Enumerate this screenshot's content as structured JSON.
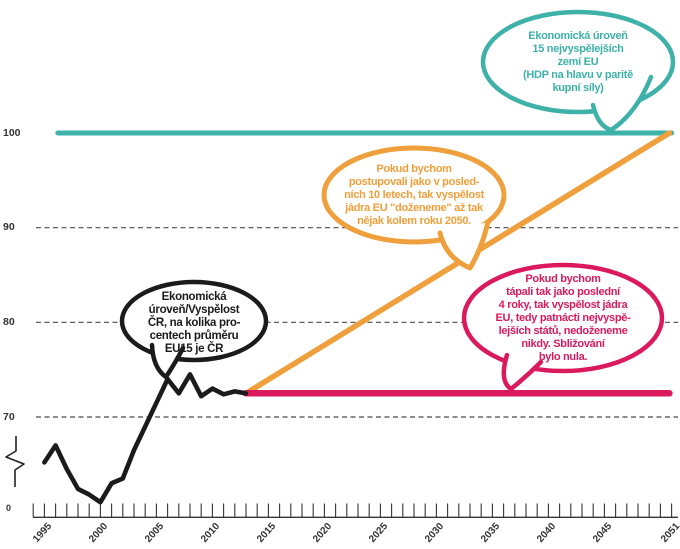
{
  "page": {
    "background": "#ffffff",
    "axis_color": "#333333"
  },
  "chart_data": {
    "type": "line",
    "title": "",
    "x_axis": {
      "tick_year_start": 1994,
      "tick_year_end": 2051,
      "labels": [
        {
          "year": 1995,
          "text": "1995"
        },
        {
          "year": 2000,
          "text": "2000"
        },
        {
          "year": 2005,
          "text": "2005"
        },
        {
          "year": 2010,
          "text": "2010"
        },
        {
          "year": 2015,
          "text": "2015"
        },
        {
          "year": 2020,
          "text": "2020"
        },
        {
          "year": 2025,
          "text": "2025"
        },
        {
          "year": 2030,
          "text": "2030"
        },
        {
          "year": 2035,
          "text": "2035"
        },
        {
          "year": 2040,
          "text": "2040"
        },
        {
          "year": 2045,
          "text": "2045"
        },
        {
          "year": 2051,
          "text": "2051"
        }
      ]
    },
    "y_axis": {
      "broken": true,
      "ticks": [
        {
          "value": 100,
          "text": "100"
        },
        {
          "value": 90,
          "text": "90"
        },
        {
          "value": 80,
          "text": "80"
        },
        {
          "value": 70,
          "text": "70"
        },
        {
          "value": 0,
          "text": "0"
        }
      ]
    },
    "gridlines": {
      "values": [
        90,
        80,
        70
      ],
      "color": "#4a4a4a",
      "style": "dashed"
    },
    "series": [
      {
        "name": "eu15-level-100",
        "color": "#3eb1a9",
        "width": 5,
        "x": [
          1996.2,
          2051.0
        ],
        "y": [
          100,
          100
        ]
      },
      {
        "name": "projection-10yr-trend",
        "color": "#ef9f3c",
        "width": 5.5,
        "x": [
          2013,
          2050.8
        ],
        "y": [
          72.5,
          100
        ]
      },
      {
        "name": "projection-4yr-stagnation",
        "color": "#db1a5e",
        "width": 6.5,
        "x": [
          2013,
          2050.8
        ],
        "y": [
          72.5,
          72.5
        ]
      },
      {
        "name": "cr-actual-level",
        "color": "#1b1b1b",
        "width": 4.6,
        "x": [
          1995,
          1996,
          1997,
          1998,
          1999,
          2000,
          2001,
          2002,
          2003,
          2004,
          2005,
          2006,
          2007,
          2008,
          2009,
          2010,
          2011,
          2012,
          2013
        ],
        "y": [
          65.2,
          67.0,
          64.5,
          62.4,
          61.8,
          61.0,
          63.0,
          63.5,
          66.5,
          69.0,
          71.5,
          74.0,
          72.5,
          74.5,
          72.2,
          73.0,
          72.4,
          72.7,
          72.5
        ]
      }
    ]
  },
  "bubbles": [
    {
      "id": "eu15",
      "color": "#3eb1a9",
      "stroke_width": 4.5,
      "text": "Ekonomická úroveň\n15 nejvyspělejších\nzemí EU\n(HDP na hlavu v paritě\nkupní síly)"
    },
    {
      "id": "projection-10yr",
      "color": "#ef9f3c",
      "stroke_width": 5,
      "text": "Pokud bychom\npostupovali jako v posled-\nních 10 letech, tak vyspělost\njádra EU \"doženeme\" až tak\nnějak kolem roku 2050."
    },
    {
      "id": "cr-level",
      "color": "#1b1b1b",
      "stroke_width": 4.5,
      "text": "Ekonomická\núroveň/Vyspělost\nČR, na kolika pro-\ncentech průměru\nEU15 je ČR"
    },
    {
      "id": "projection-4yr",
      "color": "#db1a5e",
      "stroke_width": 4.5,
      "text": "Pokud bychom\ntápali tak jako poslední\n4 roky, tak vyspělost jádra\nEU, tedy patnácti nejvyspě-\nlejších států, nedoženeme\nnikdy. Sbližování\nbylo nula."
    }
  ]
}
